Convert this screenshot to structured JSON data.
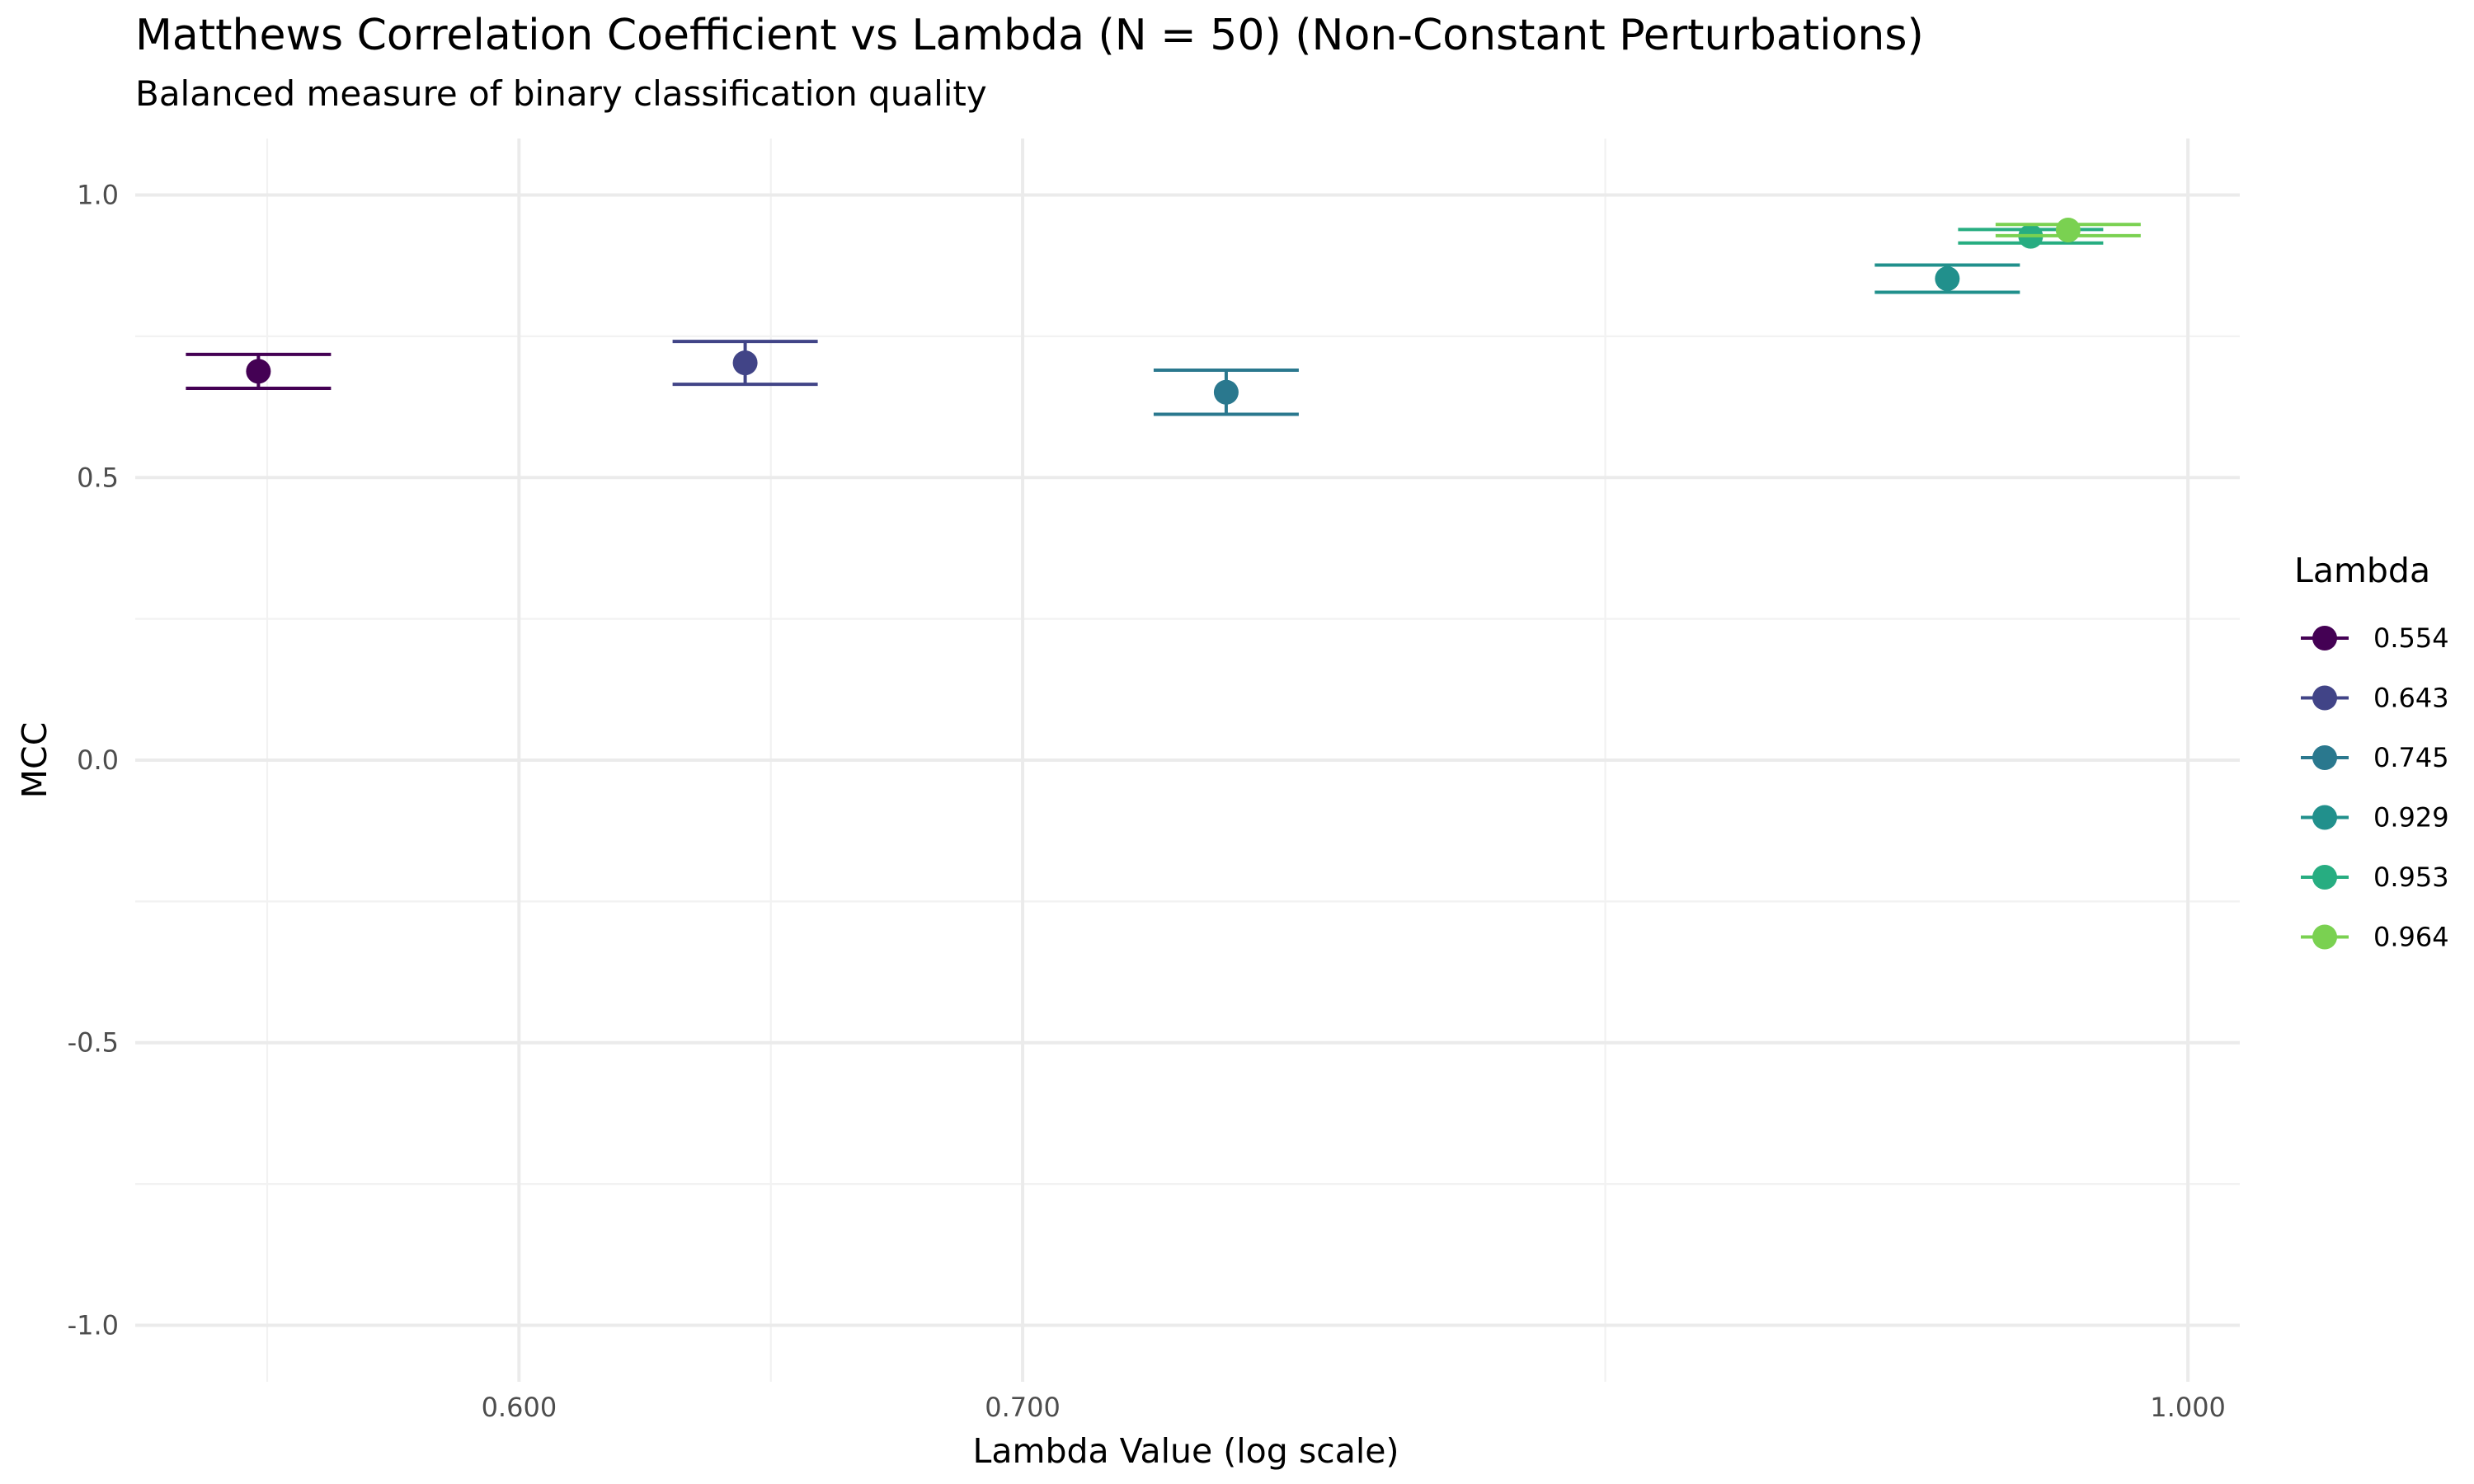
{
  "chart_data": {
    "type": "scatter",
    "title": "Matthews Correlation Coefficient vs Lambda (N = 50) (Non-Constant Perturbations)",
    "subtitle": "Balanced measure of binary classification quality",
    "xlabel": "Lambda Value (log scale)",
    "ylabel": "MCC",
    "x_scale": "log",
    "x_ticks": [
      {
        "value": 0.6,
        "label": "0.600"
      },
      {
        "value": 0.7,
        "label": "0.700"
      },
      {
        "value": 1.0,
        "label": "1.000"
      }
    ],
    "y_ticks": [
      {
        "value": 1.0,
        "label": "1.0"
      },
      {
        "value": 0.5,
        "label": "0.5"
      },
      {
        "value": 0.0,
        "label": "0.0"
      },
      {
        "value": -0.5,
        "label": "-0.5"
      },
      {
        "value": -1.0,
        "label": "-1.0"
      }
    ],
    "ylim": [
      -1.0,
      1.0
    ],
    "grid": true,
    "error_bars": true,
    "legend": {
      "title": "Lambda",
      "position": "right"
    },
    "series": [
      {
        "name": "0.554",
        "x": 0.554,
        "y": 0.688,
        "ymin": 0.658,
        "ymax": 0.718,
        "color": "#440154"
      },
      {
        "name": "0.643",
        "x": 0.643,
        "y": 0.703,
        "ymin": 0.665,
        "ymax": 0.741,
        "color": "#414487"
      },
      {
        "name": "0.745",
        "x": 0.745,
        "y": 0.651,
        "ymin": 0.612,
        "ymax": 0.69,
        "color": "#2a788e"
      },
      {
        "name": "0.929",
        "x": 0.929,
        "y": 0.852,
        "ymin": 0.828,
        "ymax": 0.876,
        "color": "#21908c"
      },
      {
        "name": "0.953",
        "x": 0.953,
        "y": 0.927,
        "ymin": 0.915,
        "ymax": 0.939,
        "color": "#27ad81"
      },
      {
        "name": "0.964",
        "x": 0.964,
        "y": 0.938,
        "ymin": 0.928,
        "ymax": 0.948,
        "color": "#7ad151"
      }
    ]
  }
}
